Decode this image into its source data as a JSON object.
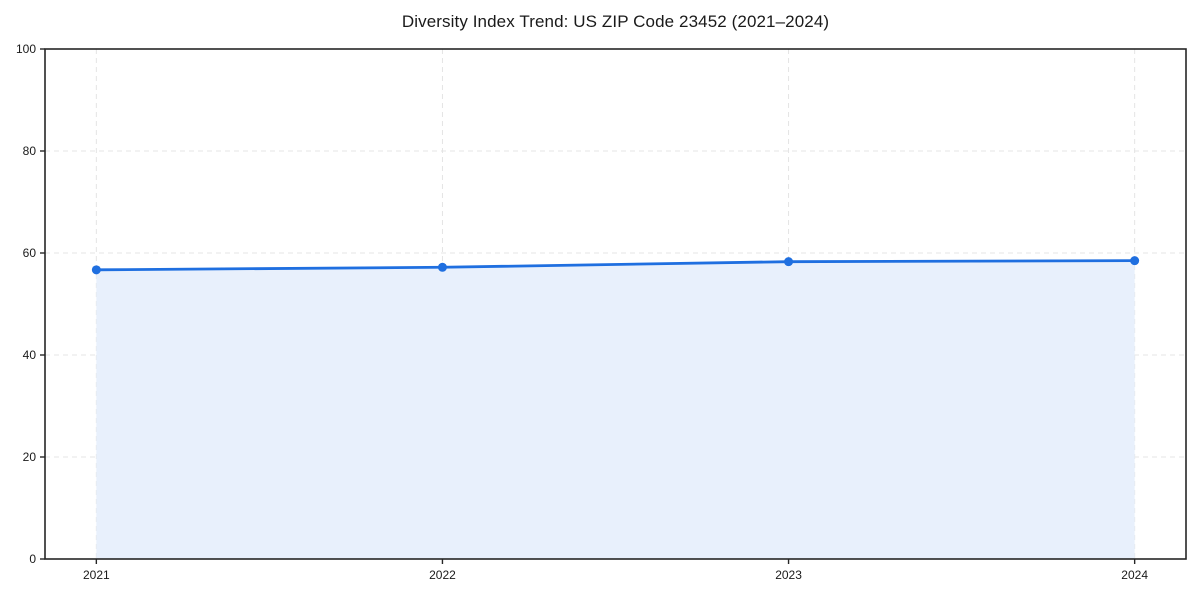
{
  "title": "Diversity Index Trend: US ZIP Code 23452 (2021–2024)",
  "colors": {
    "line": "#1f6fe0",
    "marker": "#1f6fe0",
    "area_fill": "#e8f0fc",
    "grid": "#e4e4e4",
    "spine": "#262626",
    "text": "#1a1a1a",
    "background": "#ffffff"
  },
  "chart_data": {
    "type": "area",
    "title": "Diversity Index Trend: US ZIP Code 23452 (2021–2024)",
    "categories": [
      "2021",
      "2022",
      "2023",
      "2024"
    ],
    "series": [
      {
        "name": "Diversity Index",
        "values": [
          56.7,
          57.2,
          58.3,
          58.5
        ]
      }
    ],
    "xlabel": "",
    "ylabel": "",
    "ylim": [
      0,
      100
    ],
    "yticks": [
      0,
      20,
      40,
      60,
      80,
      100
    ],
    "grid": "dashed",
    "legend": "none",
    "marker": "circle",
    "fill_to_zero": true
  }
}
